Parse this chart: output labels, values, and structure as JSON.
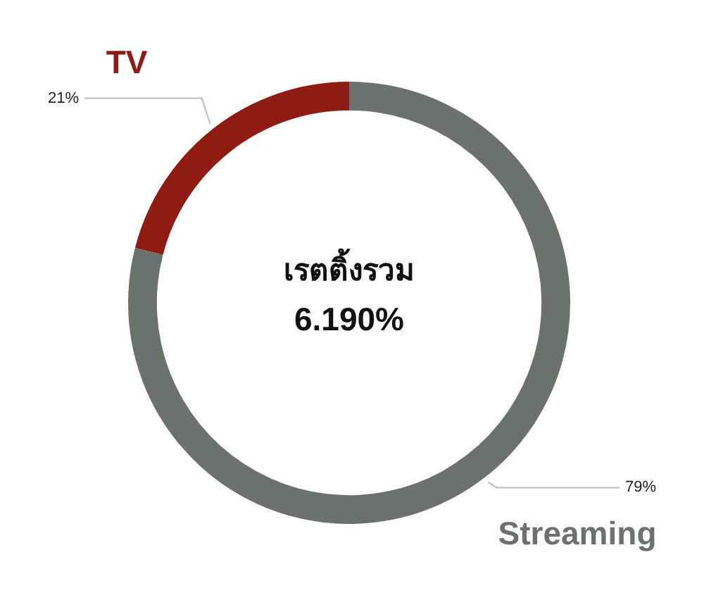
{
  "chart_data": {
    "type": "donut",
    "title": "เรตติ้งรวม",
    "subtitle": "6.190%",
    "categories": [
      "TV",
      "Streaming"
    ],
    "values": [
      21,
      79
    ],
    "colors": [
      "#8e1c15",
      "#6d716e"
    ],
    "value_labels": [
      "21%",
      "79%"
    ],
    "legend": false
  }
}
